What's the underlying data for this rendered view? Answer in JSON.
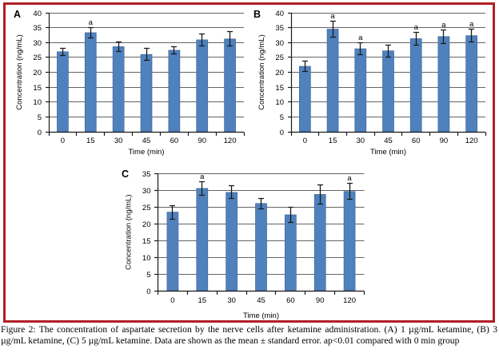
{
  "figure": {
    "caption": "Figure 2: The concentration of aspartate secretion by the nerve cells after ketamine administration. (A) 1 µg/mL ketamine, (B) 3 µg/mL ketamine, (C) 5 µg/mL ketamine. Data are shown as the mean ± standard error. ap<0.01 compared with 0 min group",
    "border_color": "#B02025"
  },
  "chart_data": [
    {
      "type": "bar",
      "panel": "A",
      "categories": [
        "0",
        "15",
        "30",
        "45",
        "60",
        "90",
        "120"
      ],
      "values": [
        26.9,
        33.3,
        28.6,
        26.0,
        27.4,
        30.9,
        31.2
      ],
      "errors": [
        1.2,
        1.8,
        1.6,
        2.0,
        1.2,
        2.1,
        2.4
      ],
      "significance": [
        "",
        "a",
        "",
        "",
        "",
        "",
        ""
      ],
      "xlabel": "Time (min)",
      "ylabel": "Concentration (ng/mL)",
      "ylim": [
        0,
        40
      ],
      "ytick_step": 5,
      "bar_color": "#4F81BD",
      "grid": true,
      "legend": "none"
    },
    {
      "type": "bar",
      "panel": "B",
      "categories": [
        "0",
        "15",
        "30",
        "45",
        "60",
        "90",
        "120"
      ],
      "values": [
        22.0,
        34.5,
        27.9,
        27.2,
        31.3,
        32.0,
        32.3
      ],
      "errors": [
        1.7,
        2.6,
        1.9,
        2.0,
        2.1,
        2.3,
        2.2
      ],
      "significance": [
        "",
        "a",
        "a",
        "",
        "a",
        "a",
        "a"
      ],
      "xlabel": "Time (min)",
      "ylabel": "Concentration (ng/mL)",
      "ylim": [
        0,
        40
      ],
      "ytick_step": 5,
      "bar_color": "#4F81BD",
      "grid": true,
      "legend": "none"
    },
    {
      "type": "bar",
      "panel": "C",
      "categories": [
        "0",
        "15",
        "30",
        "45",
        "60",
        "90",
        "120"
      ],
      "values": [
        23.5,
        30.6,
        29.4,
        26.1,
        22.7,
        28.8,
        29.7
      ],
      "errors": [
        2.0,
        2.1,
        1.9,
        1.6,
        2.2,
        2.8,
        2.4
      ],
      "significance": [
        "",
        "a",
        "",
        "",
        "",
        "",
        "a"
      ],
      "xlabel": "Time (min)",
      "ylabel": "Concentration (ng/mL)",
      "ylim": [
        0,
        35
      ],
      "ytick_step": 5,
      "bar_color": "#4F81BD",
      "grid": true,
      "legend": "none"
    }
  ]
}
